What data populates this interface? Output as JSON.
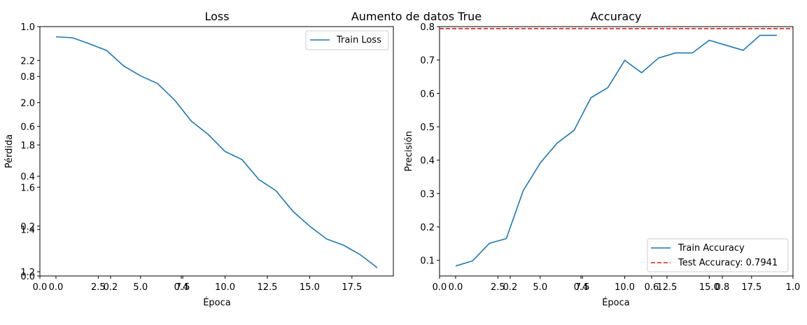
{
  "figure": {
    "suptitle": "Aumento de datos True"
  },
  "chart_data": [
    {
      "type": "line",
      "title": "Loss",
      "xlabel": "Época",
      "ylabel": "Pérdida",
      "x": [
        0,
        1,
        2,
        3,
        4,
        5,
        6,
        7,
        8,
        9,
        10,
        11,
        12,
        13,
        14,
        15,
        16,
        17,
        18,
        19
      ],
      "xlim": [
        -0.95,
        19.95
      ],
      "ylim": [
        1.18,
        2.36
      ],
      "xticks": [
        0,
        2.5,
        5,
        7.5,
        10,
        12.5,
        15,
        17.5
      ],
      "xtick_labels": [
        "0.0",
        "2.5",
        "5.0",
        "7.5",
        "10.0",
        "12.5",
        "15.0",
        "17.5"
      ],
      "yticks": [
        1.2,
        1.4,
        1.6,
        1.8,
        2.0,
        2.2
      ],
      "ytick_labels": [
        "1.2",
        "1.4",
        "1.6",
        "1.8",
        "2.0",
        "2.2"
      ],
      "series": [
        {
          "name": "Train Loss",
          "color": "#1f77b4",
          "values": [
            2.312,
            2.307,
            2.278,
            2.247,
            2.174,
            2.127,
            2.091,
            2.014,
            1.913,
            1.85,
            1.769,
            1.731,
            1.636,
            1.584,
            1.487,
            1.416,
            1.355,
            1.326,
            1.28,
            1.219
          ]
        }
      ],
      "legend": "upper right",
      "overlay_axis": {
        "range": [
          0,
          1
        ],
        "yticks": [
          0.0,
          0.2,
          0.4,
          0.6,
          0.8,
          1.0
        ],
        "ytick_labels": [
          "0.0",
          "0.2",
          "0.4",
          "0.6",
          "0.8",
          "1.0"
        ],
        "xticks": [
          0.0,
          0.2,
          0.4
        ],
        "xtick_labels": [
          "0.0",
          "0.2",
          "0.4"
        ]
      }
    },
    {
      "type": "line",
      "title": "Accuracy",
      "xlabel": "Época",
      "ylabel": "Precisión",
      "x": [
        0,
        1,
        2,
        3,
        4,
        5,
        6,
        7,
        8,
        9,
        10,
        11,
        12,
        13,
        14,
        15,
        16,
        17,
        18,
        19
      ],
      "xlim": [
        -0.95,
        19.95
      ],
      "ylim": [
        0.053,
        0.8
      ],
      "xticks": [
        0,
        2.5,
        5,
        7.5,
        10,
        12.5,
        15,
        17.5
      ],
      "xtick_labels": [
        "0.0",
        "2.5",
        "5.0",
        "7.5",
        "10.0",
        "12.5",
        "15.0",
        "17.5"
      ],
      "yticks": [
        0.1,
        0.2,
        0.3,
        0.4,
        0.5,
        0.6,
        0.7,
        0.8
      ],
      "ytick_labels": [
        "0.1",
        "0.2",
        "0.3",
        "0.4",
        "0.5",
        "0.6",
        "0.7",
        "0.8"
      ],
      "series": [
        {
          "name": "Train Accuracy",
          "color": "#1f77b4",
          "values": [
            0.083,
            0.098,
            0.151,
            0.165,
            0.309,
            0.391,
            0.451,
            0.489,
            0.587,
            0.617,
            0.699,
            0.662,
            0.706,
            0.721,
            0.721,
            0.759,
            0.744,
            0.729,
            0.774,
            0.774
          ]
        }
      ],
      "hline": {
        "name": "Test Accuracy: 0.7941",
        "value": 0.7941,
        "color": "#e31a1c",
        "style": "dashed"
      },
      "legend": "lower right",
      "overlay_axis": {
        "range": [
          0,
          1
        ],
        "xticks": [
          0.0,
          0.2,
          0.4,
          0.6,
          0.8,
          1.0
        ],
        "xtick_labels": [
          "0.0",
          "0.2",
          "0.4",
          "0.6",
          "0.8",
          "1.0"
        ]
      }
    }
  ]
}
